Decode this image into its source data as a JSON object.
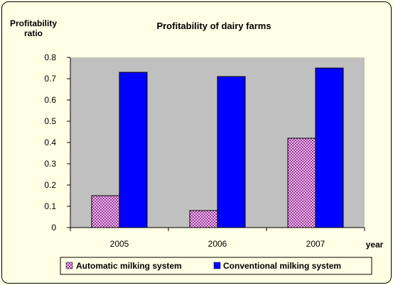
{
  "chart_data": {
    "type": "bar",
    "title": "Profitability of dairy farms",
    "ylabel_line1": "Profitability",
    "ylabel_line2": "ratio",
    "xlabel": "year",
    "categories": [
      "2005",
      "2006",
      "2007"
    ],
    "ylim": [
      0,
      0.8
    ],
    "yticks": [
      "0",
      "0.1",
      "0.2",
      "0.3",
      "0.4",
      "0.5",
      "0.6",
      "0.7",
      "0.8"
    ],
    "grid": false,
    "legend_position": "bottom",
    "series": [
      {
        "name": "Automatic milking system",
        "values": [
          0.15,
          0.08,
          0.42
        ],
        "color": "#cc66cc",
        "pattern": "checker"
      },
      {
        "name": "Conventional milking system",
        "values": [
          0.73,
          0.71,
          0.75
        ],
        "color": "#0000ff",
        "pattern": "solid"
      }
    ]
  },
  "colors": {
    "background": "#ffffe6",
    "plot_area": "#c0c0c0",
    "border": "#000000"
  }
}
